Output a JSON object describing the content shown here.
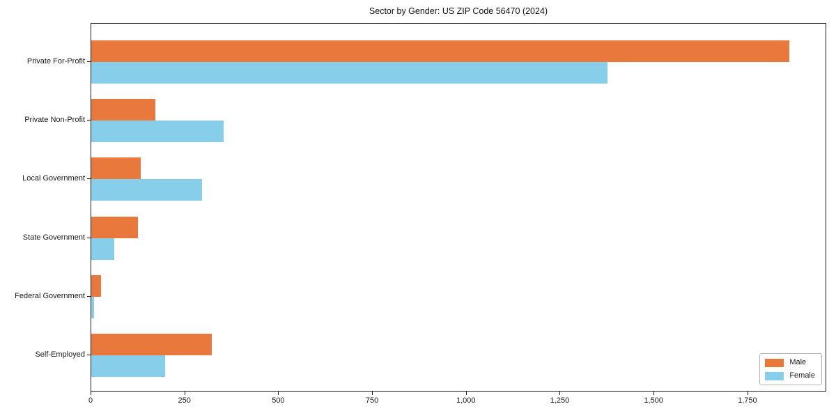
{
  "chart_data": {
    "type": "bar",
    "orientation": "horizontal",
    "title": "Sector by Gender: US ZIP Code 56470 (2024)",
    "categories": [
      "Private For-Profit",
      "Private Non-Profit",
      "Local Government",
      "State Government",
      "Federal Government",
      "Self-Employed"
    ],
    "series": [
      {
        "name": "Male",
        "color": "#E8783C",
        "values": [
          1860,
          170,
          132,
          124,
          26,
          321
        ]
      },
      {
        "name": "Female",
        "color": "#87CEEB",
        "values": [
          1375,
          352,
          295,
          62,
          7,
          197
        ]
      }
    ],
    "xlabel": "",
    "ylabel": "",
    "xlim": [
      0,
      1960
    ],
    "x_ticks": [
      0,
      250,
      500,
      750,
      1000,
      1250,
      1500,
      1750
    ],
    "x_tick_labels": [
      "0",
      "250",
      "500",
      "750",
      "1,000",
      "1,250",
      "1,500",
      "1,750"
    ],
    "grid": false,
    "legend_position": "lower right",
    "frame": true,
    "background_color": "#ffffff",
    "axis_color": "#1a1a1a"
  }
}
